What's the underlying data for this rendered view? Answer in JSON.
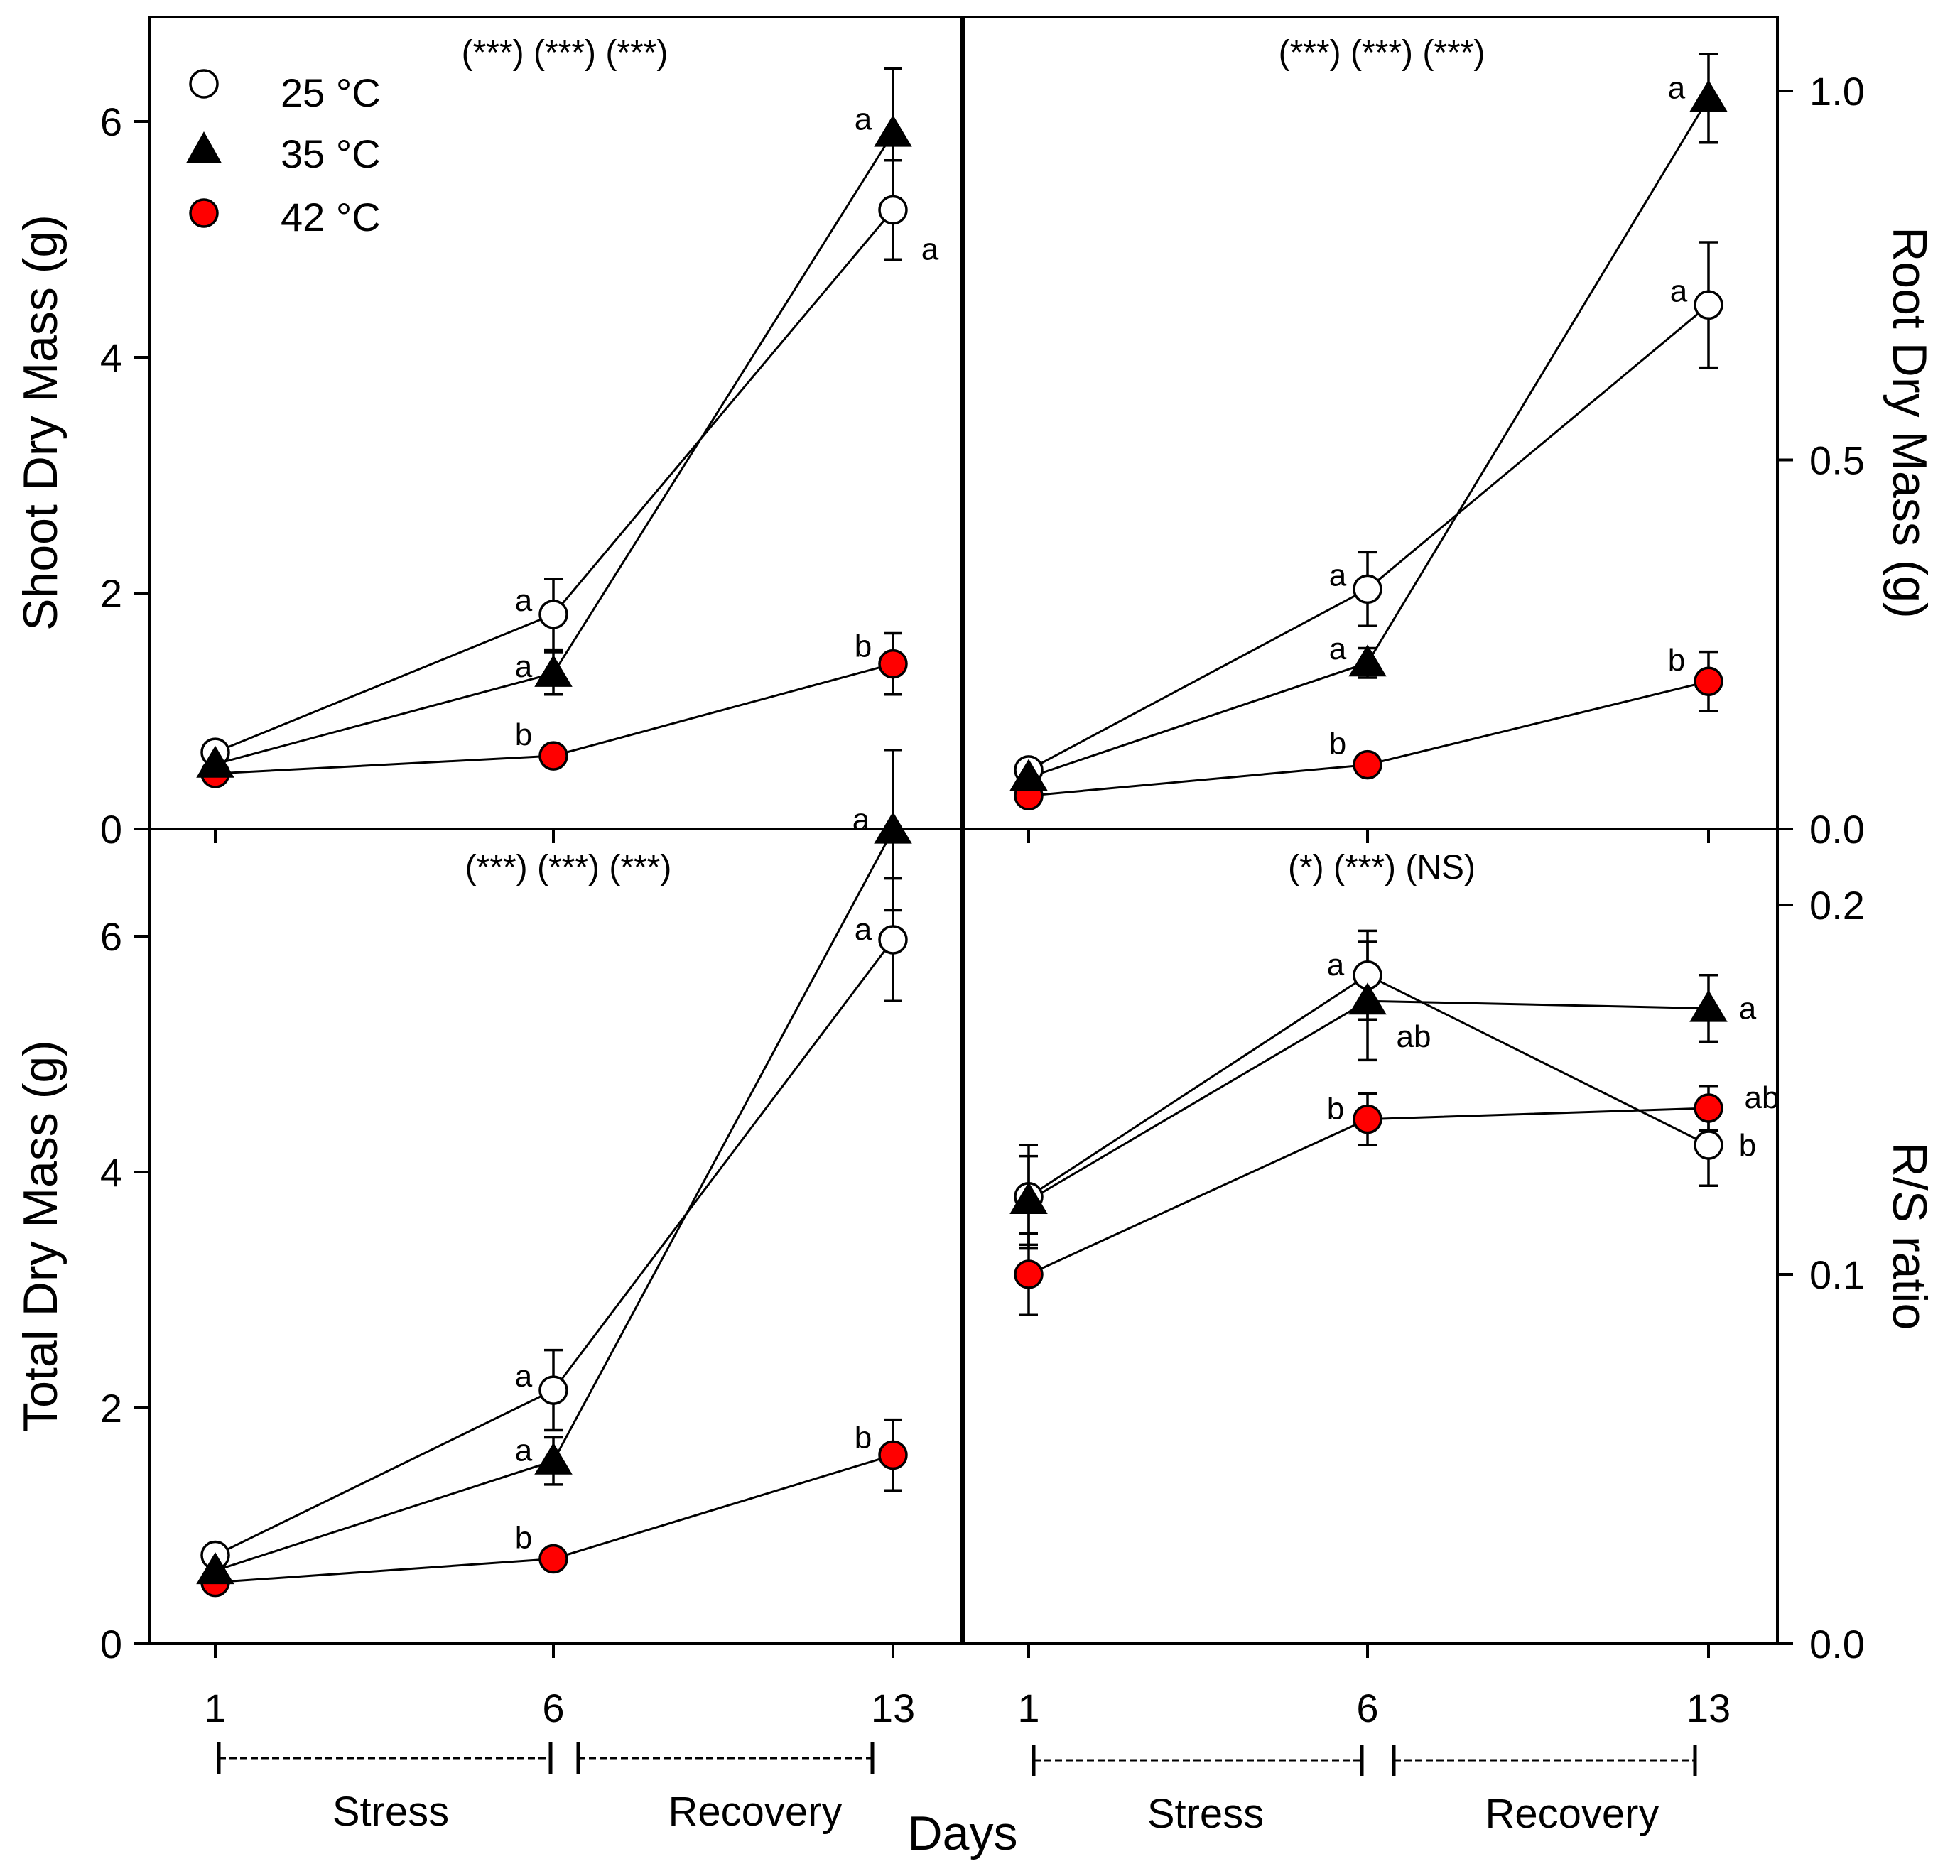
{
  "legend": [
    {
      "label": "25 °C",
      "marker": "open-circle"
    },
    {
      "label": "35 °C",
      "marker": "filled-triangle"
    },
    {
      "label": "42 °C",
      "marker": "red-circle"
    }
  ],
  "colors": {
    "red_marker": "#ff0000",
    "axes": "#000000"
  },
  "xlabel": "Days",
  "periods": [
    "Stress",
    "Recovery"
  ],
  "chart_data": [
    {
      "type": "line",
      "panel": "top-left",
      "ylabel": "Shoot Dry Mass (g)",
      "x": [
        1,
        6,
        13
      ],
      "ylim": [
        0,
        7
      ],
      "yticks": [
        0,
        2,
        4,
        6
      ],
      "significance": "(***) (***) (***)",
      "series": [
        {
          "name": "25 °C",
          "values": [
            0.65,
            1.82,
            5.25
          ],
          "errors": [
            0.05,
            0.3,
            0.42
          ],
          "letters": [
            "",
            "a",
            "a"
          ]
        },
        {
          "name": "35 °C",
          "values": [
            0.55,
            1.32,
            5.9
          ],
          "errors": [
            0.04,
            0.18,
            0.55
          ],
          "letters": [
            "",
            "a",
            "a"
          ]
        },
        {
          "name": "42 °C",
          "values": [
            0.47,
            0.62,
            1.4
          ],
          "errors": [
            0.03,
            0.05,
            0.26
          ],
          "letters": [
            "",
            "b",
            "b"
          ]
        }
      ]
    },
    {
      "type": "line",
      "panel": "top-right",
      "ylabel": "Root Dry Mass (g)",
      "x": [
        1,
        6,
        13
      ],
      "ylim": [
        0,
        1.1
      ],
      "yticks": [
        0.0,
        0.5,
        1.0
      ],
      "significance": "(***) (***) (***)",
      "series": [
        {
          "name": "25 °C",
          "values": [
            0.08,
            0.325,
            0.71
          ],
          "errors": [
            0.01,
            0.05,
            0.085
          ],
          "letters": [
            "",
            "a",
            "a"
          ]
        },
        {
          "name": "35 °C",
          "values": [
            0.07,
            0.225,
            0.99
          ],
          "errors": [
            0.01,
            0.02,
            0.06
          ],
          "letters": [
            "",
            "a",
            "a"
          ]
        },
        {
          "name": "42 °C",
          "values": [
            0.045,
            0.087,
            0.2
          ],
          "errors": [
            0.005,
            0.008,
            0.04
          ],
          "letters": [
            "",
            "b",
            "b"
          ]
        }
      ]
    },
    {
      "type": "line",
      "panel": "bottom-left",
      "ylabel": "Total Dry Mass (g)",
      "x": [
        1,
        6,
        13
      ],
      "ylim": [
        0,
        7
      ],
      "yticks": [
        0,
        2,
        4,
        6
      ],
      "significance": "(***) (***) (***)",
      "series": [
        {
          "name": "25 °C",
          "values": [
            0.75,
            2.15,
            5.97
          ],
          "errors": [
            0.05,
            0.34,
            0.52
          ],
          "letters": [
            "",
            "a",
            "a"
          ]
        },
        {
          "name": "35 °C",
          "values": [
            0.62,
            1.55,
            6.9
          ],
          "errors": [
            0.04,
            0.2,
            0.68
          ],
          "letters": [
            "",
            "a",
            "a"
          ]
        },
        {
          "name": "42 °C",
          "values": [
            0.52,
            0.72,
            1.6
          ],
          "errors": [
            0.03,
            0.05,
            0.3
          ],
          "letters": [
            "",
            "b",
            "b"
          ]
        }
      ]
    },
    {
      "type": "line",
      "panel": "bottom-right",
      "ylabel": "R/S ratio",
      "x": [
        1,
        6,
        13
      ],
      "ylim": [
        0,
        0.22
      ],
      "yticks": [
        0.0,
        0.1,
        0.2
      ],
      "significance": "(*) (***) (NS)",
      "series": [
        {
          "name": "25 °C",
          "values": [
            0.121,
            0.181,
            0.135
          ],
          "errors": [
            0.014,
            0.012,
            0.011
          ],
          "letters": [
            "",
            "a",
            "b"
          ]
        },
        {
          "name": "35 °C",
          "values": [
            0.12,
            0.174,
            0.172
          ],
          "errors": [
            0.012,
            0.016,
            0.009
          ],
          "letters": [
            "",
            "ab",
            "a"
          ]
        },
        {
          "name": "42 °C",
          "values": [
            0.1,
            0.142,
            0.145
          ],
          "errors": [
            0.011,
            0.007,
            0.006
          ],
          "letters": [
            "",
            "b",
            "ab"
          ]
        }
      ]
    }
  ]
}
